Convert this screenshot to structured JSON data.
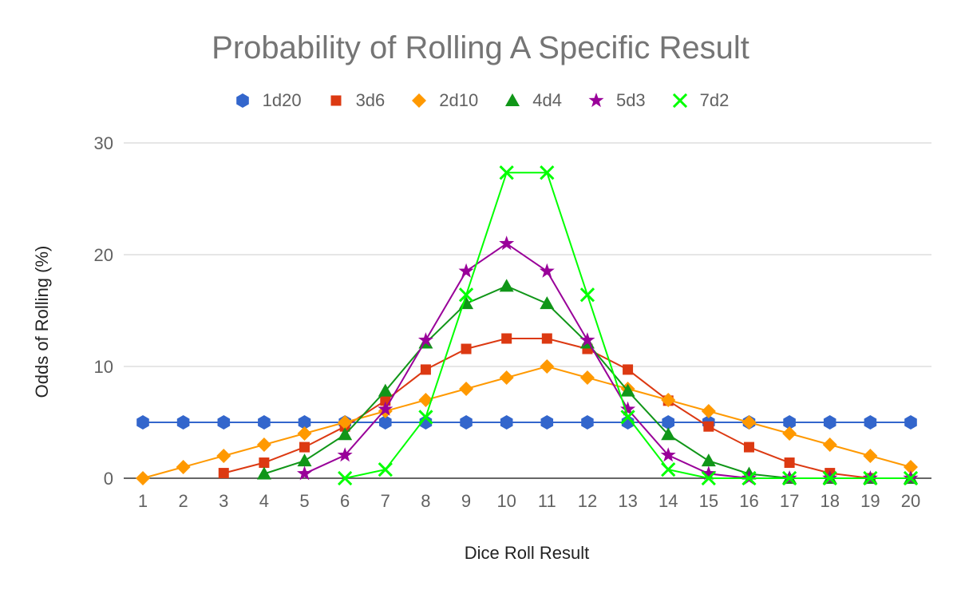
{
  "chart_data": {
    "type": "line",
    "title": "Probability of Rolling A Specific Result",
    "xlabel": "Dice Roll Result",
    "ylabel": "Odds of Rolling (%)",
    "ylim": [
      0,
      30
    ],
    "yticks": [
      0,
      10,
      20,
      30
    ],
    "grid": true,
    "legend_position": "top",
    "x": [
      1,
      2,
      3,
      4,
      5,
      6,
      7,
      8,
      9,
      10,
      11,
      12,
      13,
      14,
      15,
      16,
      17,
      18,
      19,
      20
    ],
    "series": [
      {
        "name": "1d20",
        "color": "#3366cc",
        "marker": "hexagon",
        "values": [
          5,
          5,
          5,
          5,
          5,
          5,
          5,
          5,
          5,
          5,
          5,
          5,
          5,
          5,
          5,
          5,
          5,
          5,
          5,
          5
        ]
      },
      {
        "name": "3d6",
        "color": "#dc3912",
        "marker": "square",
        "values": [
          null,
          null,
          0.46,
          1.39,
          2.78,
          4.63,
          6.94,
          9.72,
          11.57,
          12.5,
          12.5,
          11.57,
          9.72,
          6.94,
          4.63,
          2.78,
          1.39,
          0.46,
          0,
          null
        ]
      },
      {
        "name": "2d10",
        "color": "#ff9900",
        "marker": "diamond",
        "values": [
          0,
          1,
          2,
          3,
          4,
          5,
          6,
          7,
          8,
          9,
          10,
          9,
          8,
          7,
          6,
          5,
          4,
          3,
          2,
          1
        ]
      },
      {
        "name": "4d4",
        "color": "#109618",
        "marker": "triangle",
        "values": [
          null,
          null,
          null,
          0.39,
          1.56,
          3.91,
          7.81,
          12.11,
          15.63,
          17.19,
          15.63,
          12.11,
          7.81,
          3.91,
          1.56,
          0.39,
          0,
          0,
          0,
          0
        ]
      },
      {
        "name": "5d3",
        "color": "#990099",
        "marker": "star",
        "values": [
          null,
          null,
          null,
          null,
          0.41,
          2.06,
          6.17,
          12.35,
          18.52,
          20.99,
          18.52,
          12.35,
          6.17,
          2.06,
          0.41,
          0,
          0,
          0,
          0,
          0
        ]
      },
      {
        "name": "7d2",
        "color": "#00ff00",
        "marker": "x",
        "values": [
          null,
          null,
          null,
          null,
          null,
          0,
          0.78,
          5.47,
          16.41,
          27.34,
          27.34,
          16.41,
          5.47,
          0.78,
          0,
          0,
          0,
          0,
          0,
          0
        ]
      }
    ]
  }
}
